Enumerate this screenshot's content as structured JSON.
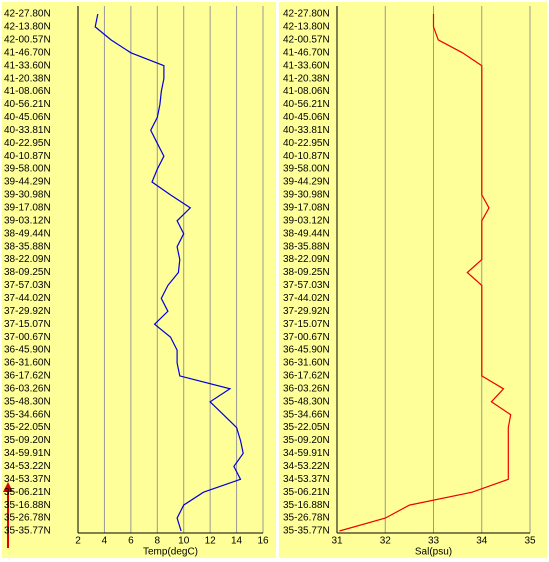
{
  "chart_data": [
    {
      "type": "line",
      "xlabel": "Temp(degC)",
      "color": "#0000dd",
      "xlim": [
        2,
        16
      ],
      "xticks": [
        2,
        4,
        6,
        8,
        10,
        12,
        14,
        16
      ],
      "grid": true,
      "categories": [
        "42-27.80N",
        "42-13.80N",
        "42-00.57N",
        "41-46.70N",
        "41-33.60N",
        "41-20.38N",
        "41-08.06N",
        "40-56.21N",
        "40-45.06N",
        "40-33.81N",
        "40-22.95N",
        "40-10.87N",
        "39-58.00N",
        "39-44.29N",
        "39-30.98N",
        "39-17.08N",
        "39-03.12N",
        "38-49.44N",
        "38-35.88N",
        "38-22.09N",
        "38-09.25N",
        "37-57.03N",
        "37-44.02N",
        "37-29.92N",
        "37-15.07N",
        "37-00.67N",
        "36-45.90N",
        "36-31.60N",
        "36-17.62N",
        "36-03.26N",
        "35-48.30N",
        "35-34.66N",
        "35-22.05N",
        "35-09.20N",
        "34-59.91N",
        "34-53.22N",
        "34-53.37N",
        "35-06.21N",
        "35-16.88N",
        "35-26.78N",
        "35-35.77N"
      ],
      "values": [
        3.5,
        3.3,
        4.5,
        6,
        8.5,
        8.5,
        8.3,
        8.2,
        8,
        7.5,
        8,
        8.5,
        8,
        7.6,
        9,
        10.5,
        9.5,
        10,
        9.5,
        9.7,
        9.6,
        8.8,
        8.3,
        8.8,
        7.8,
        9,
        9.5,
        9.5,
        9.7,
        13.5,
        12,
        13,
        14,
        14.3,
        14.5,
        13.8,
        14.3,
        11.5,
        10,
        9.5,
        9.8
      ]
    },
    {
      "type": "line",
      "xlabel": "Sal(psu)",
      "color": "#ee0000",
      "xlim": [
        31,
        35
      ],
      "xticks": [
        31,
        32,
        33,
        34,
        35
      ],
      "grid": true,
      "categories": [
        "42-27.80N",
        "42-13.80N",
        "42-00.57N",
        "41-46.70N",
        "41-33.60N",
        "41-20.38N",
        "41-08.06N",
        "40-56.21N",
        "40-45.06N",
        "40-33.81N",
        "40-22.95N",
        "40-10.87N",
        "39-58.00N",
        "39-44.29N",
        "39-30.98N",
        "39-17.08N",
        "39-03.12N",
        "38-49.44N",
        "38-35.88N",
        "38-22.09N",
        "38-09.25N",
        "37-57.03N",
        "37-44.02N",
        "37-29.92N",
        "37-15.07N",
        "37-00.67N",
        "36-45.90N",
        "36-31.60N",
        "36-17.62N",
        "36-03.26N",
        "35-48.30N",
        "35-34.66N",
        "35-22.05N",
        "35-09.20N",
        "34-59.91N",
        "34-53.22N",
        "34-53.37N",
        "35-06.21N",
        "35-16.88N",
        "35-26.78N",
        "35-35.77N"
      ],
      "values": [
        33,
        33,
        33.1,
        33.6,
        34,
        34,
        34,
        34,
        34,
        34,
        34,
        34,
        34,
        34,
        34,
        34.15,
        34,
        34,
        34,
        34,
        33.7,
        34,
        34,
        34,
        34,
        34,
        34,
        34,
        34,
        34.45,
        34.2,
        34.6,
        34.55,
        34.55,
        34.55,
        34.55,
        34.55,
        33.8,
        32.5,
        32,
        31.05
      ]
    }
  ]
}
